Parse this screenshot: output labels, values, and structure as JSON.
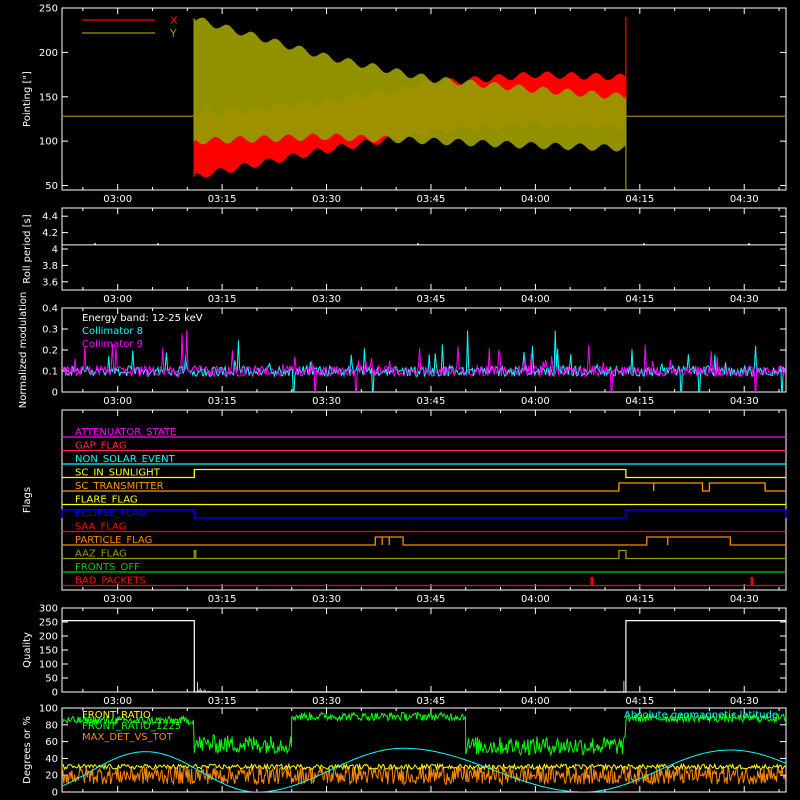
{
  "chart_data": [
    {
      "type": "line",
      "panel": "pointing",
      "xlim": [
        "02:52",
        "04:36"
      ],
      "x_ticks": [
        "03:00",
        "03:15",
        "03:30",
        "03:45",
        "04:00",
        "04:15",
        "04:30"
      ],
      "ylabel": "Pointing [\"]",
      "ylim": [
        45,
        250
      ],
      "y_ticks": [
        50,
        100,
        150,
        200,
        250
      ],
      "legend_placement": "top-left",
      "series": [
        {
          "name": "X",
          "color": "#ff0000",
          "baseline": 128,
          "oscillation_start": "03:11",
          "oscillation_end": "04:13",
          "envelope_upper": [
            [
              "03:11",
              130
            ],
            [
              "03:30",
              145
            ],
            [
              "03:45",
              165
            ],
            [
              "04:00",
              175
            ],
            [
              "04:13",
              172
            ]
          ],
          "envelope_lower": [
            [
              "03:11",
              60
            ],
            [
              "03:30",
              90
            ],
            [
              "03:45",
              110
            ],
            [
              "04:00",
              120
            ],
            [
              "04:13",
              115
            ]
          ]
        },
        {
          "name": "Y",
          "color": "#999900",
          "baseline": 128,
          "oscillation_start": "03:11",
          "oscillation_end": "04:13",
          "envelope_upper": [
            [
              "03:11",
              238
            ],
            [
              "03:30",
              195
            ],
            [
              "03:45",
              170
            ],
            [
              "04:00",
              158
            ],
            [
              "04:13",
              150
            ]
          ],
          "envelope_lower": [
            [
              "03:11",
              100
            ],
            [
              "03:30",
              105
            ],
            [
              "03:45",
              100
            ],
            [
              "04:00",
              95
            ],
            [
              "04:13",
              92
            ]
          ]
        }
      ]
    },
    {
      "type": "line",
      "panel": "roll_period",
      "xlim": [
        "02:52",
        "04:36"
      ],
      "x_ticks": [
        "03:00",
        "03:15",
        "03:30",
        "03:45",
        "04:00",
        "04:15",
        "04:30"
      ],
      "ylabel": "Roll period [s]",
      "ylim": [
        3.5,
        4.5
      ],
      "y_ticks": [
        3.6,
        3.8,
        4.0,
        4.2,
        4.4
      ],
      "series": [
        {
          "name": "",
          "color": "#ffffff",
          "value": 4.05
        }
      ]
    },
    {
      "type": "line",
      "panel": "modulation",
      "xlim": [
        "02:52",
        "04:36"
      ],
      "x_ticks": [
        "03:00",
        "03:15",
        "03:30",
        "03:45",
        "04:00",
        "04:15",
        "04:30"
      ],
      "ylabel": "Normalized modulation",
      "ylim": [
        0.0,
        0.4
      ],
      "y_ticks": [
        0.0,
        0.1,
        0.2,
        0.3,
        0.4
      ],
      "annotation": "Energy band: 12-25 keV",
      "series": [
        {
          "name": "Collimator 8",
          "color": "#00ffff",
          "typical": 0.1
        },
        {
          "name": "Collimator 9",
          "color": "#ff00ff",
          "typical": 0.1
        }
      ]
    },
    {
      "type": "line",
      "panel": "flags",
      "xlim": [
        "02:52",
        "04:36"
      ],
      "ylabel": "Flags",
      "x_ticks": [
        "03:00",
        "03:15",
        "03:30",
        "03:45",
        "04:00",
        "04:15",
        "04:30"
      ],
      "series": [
        {
          "name": "ATTENUATOR_STATE",
          "color": "#ff00ff",
          "on": []
        },
        {
          "name": "GAP_FLAG",
          "color": "#ff2050",
          "on": []
        },
        {
          "name": "NON_SOLAR_EVENT",
          "color": "#00ffff",
          "on": []
        },
        {
          "name": "SC_IN_SUNLIGHT",
          "color": "#ffff00",
          "on": [
            [
              "03:11",
              "04:13"
            ]
          ]
        },
        {
          "name": "SC_TRANSMITTER",
          "color": "#ff9900",
          "on": [
            [
              "04:12",
              "04:17"
            ],
            [
              "04:17",
              "04:24"
            ],
            [
              "04:25",
              "04:33"
            ]
          ]
        },
        {
          "name": "FLARE_FLAG",
          "color": "#ffff00",
          "on": []
        },
        {
          "name": "ECLIPSE_FLAG",
          "color": "#0000ff",
          "on": [
            [
              "02:52",
              "03:11"
            ],
            [
              "04:13",
              "04:36"
            ]
          ]
        },
        {
          "name": "SAA_FLAG",
          "color": "#ff0000",
          "on": []
        },
        {
          "name": "PARTICLE_FLAG",
          "color": "#ff8800",
          "on": [
            [
              "03:37",
              "03:38"
            ],
            [
              "03:38",
              "03:39"
            ],
            [
              "03:39",
              "03:41"
            ],
            [
              "04:16",
              "04:19"
            ],
            [
              "04:19",
              "04:28"
            ]
          ]
        },
        {
          "name": "AAZ_FLAG",
          "color": "#999900",
          "on": [
            [
              "03:11",
              "03:11"
            ],
            [
              "04:12",
              "04:13"
            ]
          ]
        },
        {
          "name": "FRONTS_OFF",
          "color": "#00cc00",
          "on": []
        },
        {
          "name": "BAD_PACKETS",
          "color": "#ff0000",
          "on": [
            [
              "04:08",
              "04:08"
            ],
            [
              "04:31",
              "04:31"
            ]
          ]
        }
      ]
    },
    {
      "type": "line",
      "panel": "quality",
      "xlim": [
        "02:52",
        "04:36"
      ],
      "x_ticks": [
        "03:00",
        "03:15",
        "03:30",
        "03:45",
        "04:00",
        "04:15",
        "04:30"
      ],
      "ylabel": "Quality",
      "ylim": [
        0,
        300
      ],
      "y_ticks": [
        0,
        50,
        100,
        150,
        200,
        250,
        300
      ],
      "series": [
        {
          "name": "",
          "color": "#ffffff",
          "high_value": 255,
          "high_intervals": [
            [
              "02:52",
              "03:11"
            ],
            [
              "04:13",
              "04:36"
            ]
          ]
        }
      ]
    },
    {
      "type": "line",
      "panel": "geomag",
      "xlim": [
        "02:52",
        "04:36"
      ],
      "ylabel": "Degrees or %",
      "ylim": [
        0,
        100
      ],
      "y_ticks": [
        0,
        20,
        40,
        60,
        80,
        100
      ],
      "series": [
        {
          "name": "FRONT_RATIO",
          "color": "#ffff00",
          "typical": 30
        },
        {
          "name": "FRONT_RATIO_1225",
          "color": "#00ff00",
          "segments": [
            [
              "02:52",
              "03:11",
              85
            ],
            [
              "03:11",
              "03:25",
              57
            ],
            [
              "03:25",
              "03:50",
              90
            ],
            [
              "03:50",
              "04:13",
              55
            ],
            [
              "04:13",
              "04:36",
              88
            ]
          ]
        },
        {
          "name": "MAX_DET_VS_TOT",
          "color": "#ff8800",
          "typical": 20
        },
        {
          "name": "Absolute geomagnetic latitude",
          "color": "#00ffff",
          "peaks": [
            [
              "03:04",
              48
            ],
            [
              "03:41",
              52
            ],
            [
              "04:28",
              50
            ]
          ],
          "troughs": [
            [
              "03:20",
              0
            ],
            [
              "04:07",
              0
            ]
          ]
        }
      ]
    }
  ]
}
